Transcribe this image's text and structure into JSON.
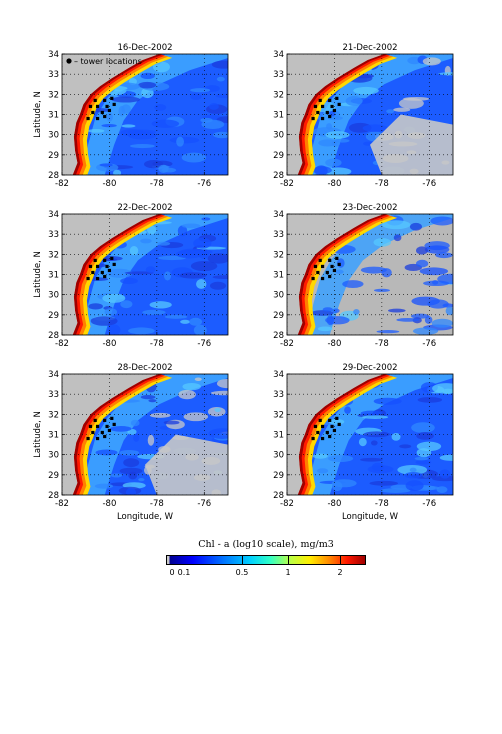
{
  "chart_data": [
    {
      "type": "heatmap",
      "title": "16-Dec-2002",
      "xlabel": "",
      "ylabel": "Latitude, N",
      "legend": "• – tower locations",
      "xlim": [
        -82,
        -75
      ],
      "ylim": [
        28,
        34
      ],
      "xticks": [
        "-82",
        "-80",
        "-78",
        "-76"
      ],
      "yticks": [
        "28",
        "29",
        "30",
        "31",
        "32",
        "33",
        "34"
      ],
      "grid": true,
      "variant": "dense"
    },
    {
      "type": "heatmap",
      "title": "21-Dec-2002",
      "xlabel": "",
      "ylabel": "",
      "xlim": [
        -82,
        -75
      ],
      "ylim": [
        28,
        34
      ],
      "xticks": [
        "-82",
        "-80",
        "-78",
        "-76"
      ],
      "yticks": [
        "28",
        "29",
        "30",
        "31",
        "32",
        "33",
        "34"
      ],
      "grid": true,
      "variant": "sparse"
    },
    {
      "type": "heatmap",
      "title": "22-Dec-2002",
      "xlabel": "",
      "ylabel": "Latitude, N",
      "xlim": [
        -82,
        -75
      ],
      "ylim": [
        28,
        34
      ],
      "xticks": [
        "-82",
        "-80",
        "-78",
        "-76"
      ],
      "yticks": [
        "28",
        "29",
        "30",
        "31",
        "32",
        "33",
        "34"
      ],
      "grid": true,
      "variant": "dense"
    },
    {
      "type": "heatmap",
      "title": "23-Dec-2002",
      "xlabel": "",
      "ylabel": "",
      "xlim": [
        -82,
        -75
      ],
      "ylim": [
        28,
        34
      ],
      "xticks": [
        "-82",
        "-80",
        "-78",
        "-76"
      ],
      "yticks": [
        "28",
        "29",
        "30",
        "31",
        "32",
        "33",
        "34"
      ],
      "grid": true,
      "variant": "streaks"
    },
    {
      "type": "heatmap",
      "title": "28-Dec-2002",
      "xlabel": "Longitude, W",
      "ylabel": "Latitude, N",
      "xlim": [
        -82,
        -75
      ],
      "ylim": [
        28,
        34
      ],
      "xticks": [
        "-82",
        "-80",
        "-78",
        "-76"
      ],
      "yticks": [
        "28",
        "29",
        "30",
        "31",
        "32",
        "33",
        "34"
      ],
      "grid": true,
      "variant": "sparse"
    },
    {
      "type": "heatmap",
      "title": "29-Dec-2002",
      "xlabel": "Longitude, W",
      "ylabel": "",
      "xlim": [
        -82,
        -75
      ],
      "ylim": [
        28,
        34
      ],
      "xticks": [
        "-82",
        "-80",
        "-78",
        "-76"
      ],
      "yticks": [
        "28",
        "29",
        "30",
        "31",
        "32",
        "33",
        "34"
      ],
      "grid": true,
      "variant": "dense"
    }
  ],
  "tower_locations": [
    [
      -80.6,
      31.7
    ],
    [
      -80.2,
      31.7
    ],
    [
      -79.9,
      31.8
    ],
    [
      -80.8,
      31.4
    ],
    [
      -80.5,
      31.4
    ],
    [
      -80.1,
      31.4
    ],
    [
      -79.8,
      31.5
    ],
    [
      -80.7,
      31.1
    ],
    [
      -80.3,
      31.1
    ],
    [
      -80.0,
      31.2
    ],
    [
      -80.9,
      30.8
    ],
    [
      -80.5,
      30.8
    ],
    [
      -80.2,
      30.9
    ]
  ],
  "colorbar": {
    "title": "Chl - a (log10 scale), mg/m3",
    "ticks": [
      {
        "label": "0",
        "value": 0
      },
      {
        "label": "0.1",
        "value": 0.1
      },
      {
        "label": "0.5",
        "value": 0.5
      },
      {
        "label": "1",
        "value": 1
      },
      {
        "label": "2",
        "value": 2
      }
    ]
  },
  "colors": {
    "land": "#c0c0c0",
    "no_data": "#c8c8c8",
    "low": "#0000ff",
    "high": "#a00000"
  }
}
